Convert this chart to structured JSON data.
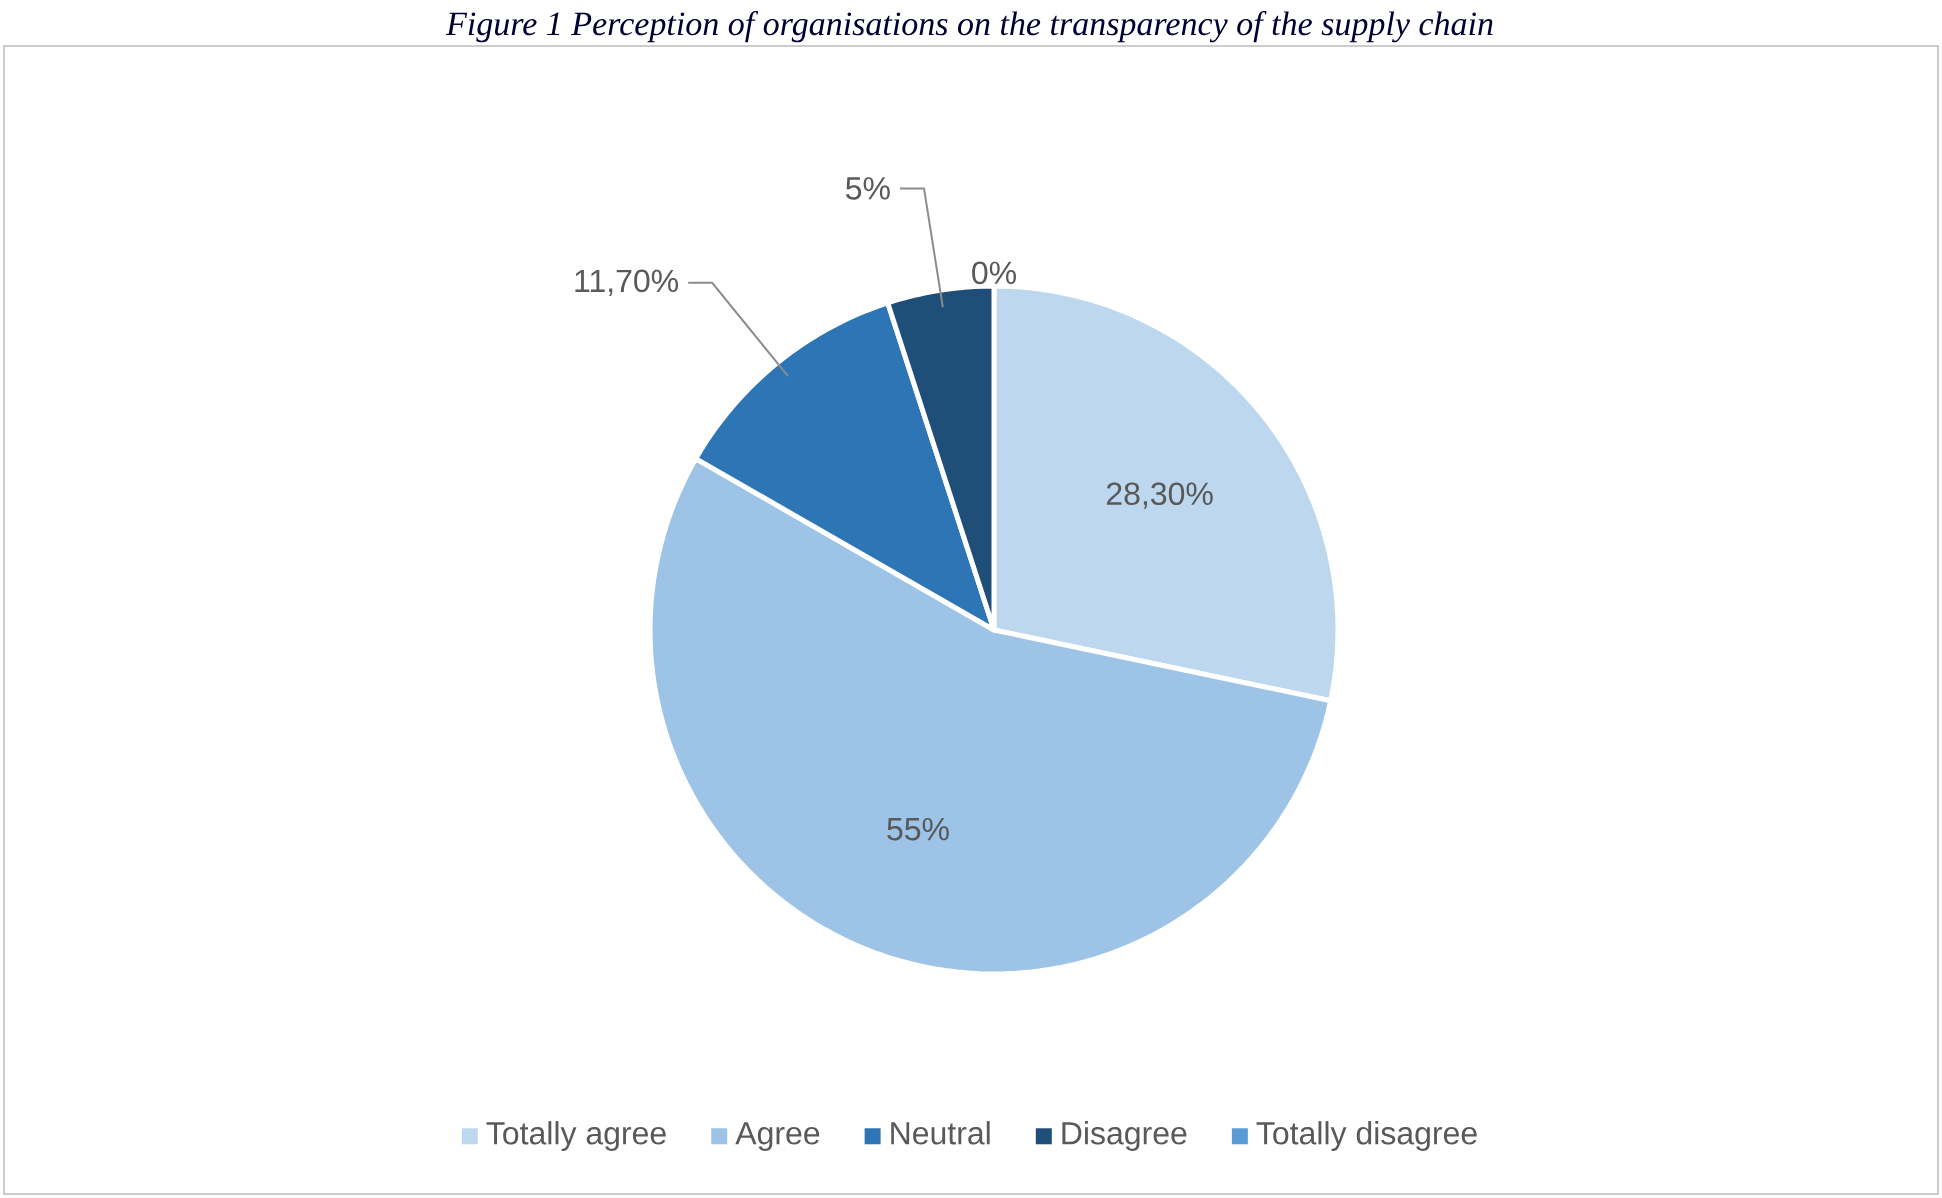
{
  "chart_data": {
    "type": "pie",
    "title": "Figure 1 Perception of organisations on the transparency of the supply chain",
    "categories": [
      "Totally agree",
      "Agree",
      "Neutral",
      "Disagree",
      "Totally disagree"
    ],
    "values": [
      28.3,
      55,
      11.7,
      5,
      0
    ],
    "value_labels": [
      "28,30%",
      "55%",
      "11,70%",
      "5%",
      "0%"
    ],
    "colors": [
      "#bdd7ee",
      "#9dc3e6",
      "#2e75b6",
      "#1f4e79",
      "#5b9bd5"
    ],
    "legend": "bottom"
  }
}
